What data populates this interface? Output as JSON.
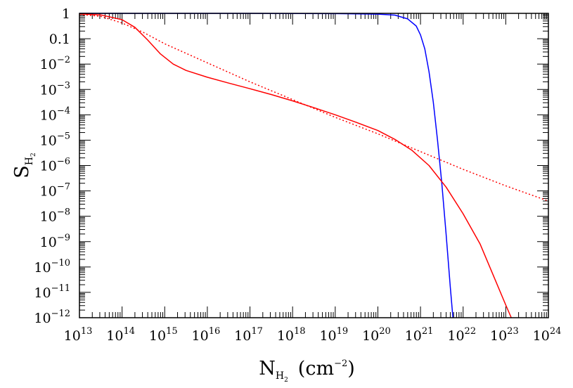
{
  "chart_data": {
    "type": "line",
    "x_scale": "log",
    "y_scale": "log",
    "xlim": [
      10000000000000.0,
      1e+24
    ],
    "ylim": [
      1e-12,
      1
    ],
    "xlabel": {
      "main": "N",
      "sub": "H",
      "subsub": "2",
      "unit": "(cm",
      "unit_exp": "−2",
      "unit_close": ")"
    },
    "ylabel": {
      "main": "S",
      "sub": "H",
      "subsub": "2"
    },
    "x_ticks": [
      {
        "base": "10",
        "exp": "13"
      },
      {
        "base": "10",
        "exp": "14"
      },
      {
        "base": "10",
        "exp": "15"
      },
      {
        "base": "10",
        "exp": "16"
      },
      {
        "base": "10",
        "exp": "17"
      },
      {
        "base": "10",
        "exp": "18"
      },
      {
        "base": "10",
        "exp": "19"
      },
      {
        "base": "10",
        "exp": "20"
      },
      {
        "base": "10",
        "exp": "21"
      },
      {
        "base": "10",
        "exp": "22"
      },
      {
        "base": "10",
        "exp": "23"
      },
      {
        "base": "10",
        "exp": "24"
      }
    ],
    "y_ticks": [
      {
        "base": "1",
        "exp": ""
      },
      {
        "base": "0.1",
        "exp": ""
      },
      {
        "base": "10",
        "exp": "−2"
      },
      {
        "base": "10",
        "exp": "−3"
      },
      {
        "base": "10",
        "exp": "−4"
      },
      {
        "base": "10",
        "exp": "−5"
      },
      {
        "base": "10",
        "exp": "−6"
      },
      {
        "base": "10",
        "exp": "−7"
      },
      {
        "base": "10",
        "exp": "−8"
      },
      {
        "base": "10",
        "exp": "−9"
      },
      {
        "base": "10",
        "exp": "−10"
      },
      {
        "base": "10",
        "exp": "−11"
      },
      {
        "base": "10",
        "exp": "−12"
      }
    ],
    "grid": false,
    "series": [
      {
        "color": "#0000ff",
        "style": "solid",
        "points": [
          [
            13,
            0
          ],
          [
            17,
            0
          ],
          [
            19,
            -0.01
          ],
          [
            20,
            -0.03
          ],
          [
            20.4,
            -0.07
          ],
          [
            20.7,
            -0.22
          ],
          [
            20.9,
            -0.5
          ],
          [
            21.0,
            -0.85
          ],
          [
            21.1,
            -1.4
          ],
          [
            21.2,
            -2.3
          ],
          [
            21.3,
            -3.5
          ],
          [
            21.4,
            -5.0
          ],
          [
            21.5,
            -6.7
          ],
          [
            21.6,
            -8.7
          ],
          [
            21.7,
            -10.8
          ],
          [
            21.76,
            -12
          ]
        ]
      },
      {
        "color": "#ff0000",
        "style": "solid",
        "points": [
          [
            13,
            -0.02
          ],
          [
            13.5,
            -0.06
          ],
          [
            14,
            -0.25
          ],
          [
            14.3,
            -0.55
          ],
          [
            14.6,
            -1.05
          ],
          [
            14.9,
            -1.6
          ],
          [
            15.2,
            -2.0
          ],
          [
            15.5,
            -2.25
          ],
          [
            16,
            -2.52
          ],
          [
            16.5,
            -2.75
          ],
          [
            17,
            -2.97
          ],
          [
            17.5,
            -3.2
          ],
          [
            18,
            -3.45
          ],
          [
            18.5,
            -3.72
          ],
          [
            19,
            -4.0
          ],
          [
            19.5,
            -4.3
          ],
          [
            20,
            -4.62
          ],
          [
            20.4,
            -4.97
          ],
          [
            20.8,
            -5.4
          ],
          [
            21.2,
            -6.0
          ],
          [
            21.6,
            -6.85
          ],
          [
            22,
            -7.9
          ],
          [
            22.4,
            -9.1
          ],
          [
            22.7,
            -10.3
          ],
          [
            23,
            -11.5
          ],
          [
            23.13,
            -12
          ]
        ]
      },
      {
        "color": "#ff0000",
        "style": "dotted",
        "points": [
          [
            13,
            -0.04
          ],
          [
            13.5,
            -0.12
          ],
          [
            14,
            -0.38
          ],
          [
            14.5,
            -0.75
          ],
          [
            15,
            -1.2
          ],
          [
            16,
            -1.95
          ],
          [
            17,
            -2.7
          ],
          [
            18,
            -3.4
          ],
          [
            19,
            -4.1
          ],
          [
            20,
            -4.75
          ],
          [
            21,
            -5.45
          ],
          [
            22,
            -6.15
          ],
          [
            23,
            -6.8
          ],
          [
            24,
            -7.4
          ]
        ]
      }
    ]
  }
}
